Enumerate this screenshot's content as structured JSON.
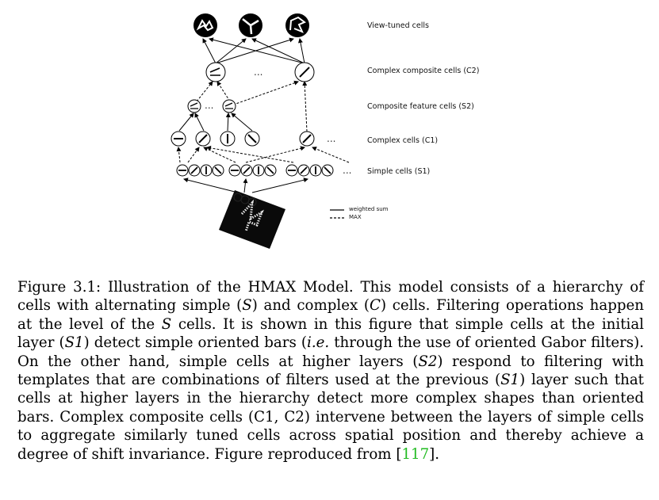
{
  "figure": {
    "layers": {
      "view_tuned": "View-tuned cells",
      "c2": "Complex composite cells (C2)",
      "s2": "Composite feature cells (S2)",
      "c1": "Complex cells (C1)",
      "s1": "Simple cells (S1)"
    },
    "legend": {
      "weighted_sum": "weighted sum",
      "max": "MAX"
    },
    "ellipsis": "..."
  },
  "caption": {
    "label": "Figure 3.1:",
    "p1": " Illustration of the HMAX Model. This model consists of a hierarchy of cells with alternating simple (",
    "m1": "S",
    "p2": ") and complex (",
    "m2": "C",
    "p3": ") cells. Filtering operations happen at the level of the ",
    "m3": "S",
    "p4": " cells. It is shown in this figure that simple cells at the initial layer (",
    "m4": "S1",
    "p5": ") detect simple oriented bars (",
    "m5": "i.e.",
    "p6": " through the use of oriented Gabor filters). On the other hand, simple cells at higher layers (",
    "m6": "S2",
    "p7": ") respond to filtering with templates that are combinations of filters used at the previous (",
    "m7": "S1",
    "p8": ") layer such that cells at higher layers in the hierarchy detect more complex shapes than oriented bars. Complex composite cells (C1, C2) intervene between the layers of simple cells to aggregate similarly tuned cells across spatial position and thereby achieve a degree of shift invariance. Figure reproduced from [",
    "ref": "117",
    "p9": "]."
  }
}
